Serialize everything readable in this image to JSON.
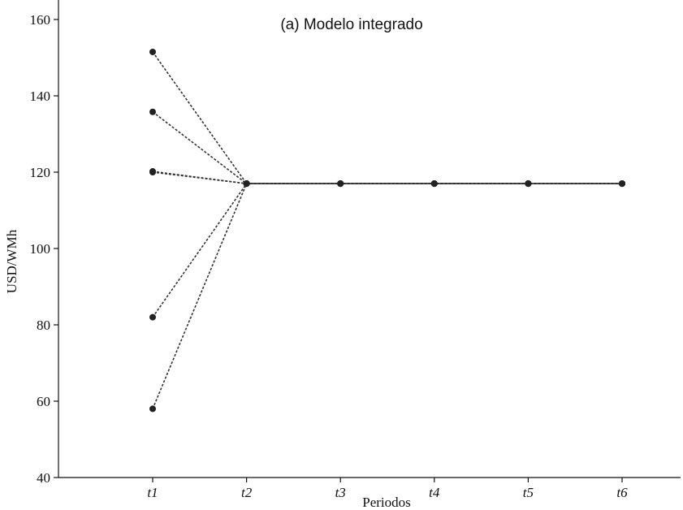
{
  "chart_data": {
    "type": "line",
    "title": "(a) Modelo integrado",
    "xlabel": "Periodos",
    "ylabel": "USD/WMh",
    "categories": [
      "t1",
      "t2",
      "t3",
      "t4",
      "t5",
      "t6"
    ],
    "ylim": [
      40,
      160
    ],
    "yticks": [
      40,
      60,
      80,
      100,
      120,
      140,
      160
    ],
    "grid": false,
    "legend": "none",
    "series": [
      {
        "values": [
          151.5,
          117,
          117,
          117,
          117,
          117
        ]
      },
      {
        "values": [
          135.8,
          117,
          117,
          117,
          117,
          117
        ]
      },
      {
        "values": [
          120.2,
          117,
          117,
          117,
          117,
          117
        ]
      },
      {
        "values": [
          120,
          117,
          117,
          117,
          117,
          117
        ]
      },
      {
        "values": [
          82,
          117,
          117,
          117,
          117,
          117
        ]
      },
      {
        "values": [
          58,
          117,
          117,
          117,
          117,
          117
        ]
      }
    ],
    "colors": {
      "line": "#333333",
      "marker": "#222222",
      "axis": "#111111"
    }
  }
}
